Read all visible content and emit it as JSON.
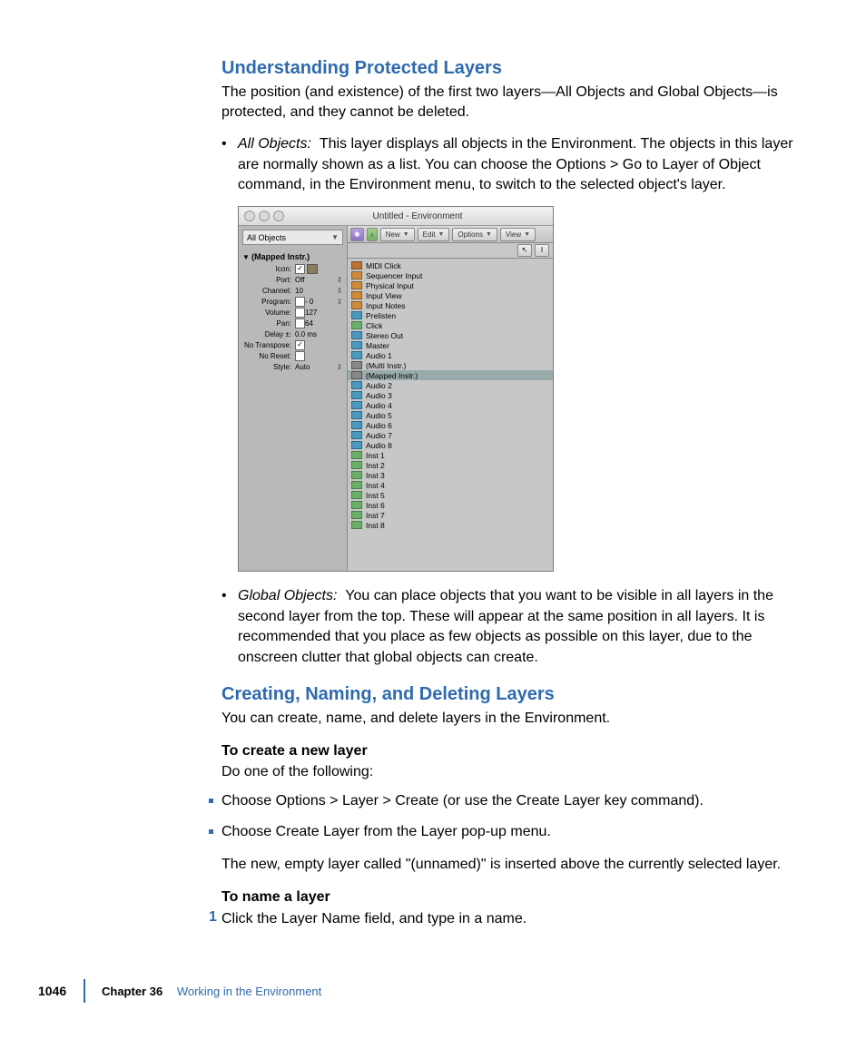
{
  "section1": {
    "title": "Understanding Protected Layers",
    "intro": "The position (and existence) of the first two layers—All Objects and Global Objects—is protected, and they cannot be deleted.",
    "bullet1_label": "All Objects:",
    "bullet1_body": "This layer displays all objects in the Environment. The objects in this layer are normally shown as a list. You can choose the Options > Go to Layer of Object command, in the Environment menu, to switch to the selected object's layer.",
    "bullet2_label": "Global Objects:",
    "bullet2_body": "You can place objects that you want to be visible in all layers in the second layer from the top. These will appear at the same position in all layers. It is recommended that you place as few objects as possible on this layer, due to the onscreen clutter that global objects can create."
  },
  "section2": {
    "title": "Creating, Naming, and Deleting Layers",
    "intro": "You can create, name, and delete layers in the Environment.",
    "sub1": "To create a new layer",
    "sub1_body": "Do one of the following:",
    "opt1": "Choose Options > Layer > Create (or use the Create Layer key command).",
    "opt2": "Choose Create Layer from the Layer pop-up menu.",
    "after_opts": "The new, empty layer called \"(unnamed)\" is inserted above the currently selected layer.",
    "sub2": "To name a layer",
    "step1": "Click the Layer Name field, and type in a name."
  },
  "footer": {
    "page": "1046",
    "chapter_label": "Chapter 36",
    "chapter_title": "Working in the Environment"
  },
  "window": {
    "title": "Untitled - Environment",
    "layer": "All Objects",
    "inspector_title": "(Mapped Instr.)",
    "rows": [
      {
        "label": "Icon:",
        "val": "",
        "check": true,
        "icon": true
      },
      {
        "label": "Port:",
        "val": "Off",
        "updn": true
      },
      {
        "label": "Channel:",
        "val": "10",
        "updn": true
      },
      {
        "label": "Program:",
        "val": "- 0",
        "check": false,
        "updn": true
      },
      {
        "label": "Volume:",
        "val": "127",
        "check": false,
        "updn": false
      },
      {
        "label": "Pan:",
        "val": "64",
        "check": false,
        "updn": false
      },
      {
        "label": "Delay ±:",
        "val": "0.0 ms"
      },
      {
        "label": "No Transpose:",
        "val": "",
        "check": true
      },
      {
        "label": "No Reset:",
        "val": "",
        "check": false
      },
      {
        "label": "Style:",
        "val": "Auto",
        "updn": true
      }
    ],
    "toolbar": {
      "new": "New",
      "edit": "Edit",
      "options": "Options",
      "view": "View"
    },
    "list": [
      {
        "ico": "metro",
        "name": "MIDI Click"
      },
      {
        "ico": "folder",
        "name": "Sequencer Input"
      },
      {
        "ico": "folder",
        "name": "Physical Input"
      },
      {
        "ico": "folder",
        "name": "Input View"
      },
      {
        "ico": "folder",
        "name": "Input Notes"
      },
      {
        "ico": "audio",
        "name": "Prelisten"
      },
      {
        "ico": "inst",
        "name": "Click"
      },
      {
        "ico": "audio",
        "name": "Stereo Out"
      },
      {
        "ico": "audio",
        "name": "Master"
      },
      {
        "ico": "audio",
        "name": "Audio 1"
      },
      {
        "ico": "multi",
        "name": "(Multi Instr.)"
      },
      {
        "ico": "multi",
        "name": "(Mapped Instr.)",
        "selected": true
      },
      {
        "ico": "audio",
        "name": "Audio 2"
      },
      {
        "ico": "audio",
        "name": "Audio 3"
      },
      {
        "ico": "audio",
        "name": "Audio 4"
      },
      {
        "ico": "audio",
        "name": "Audio 5"
      },
      {
        "ico": "audio",
        "name": "Audio 6"
      },
      {
        "ico": "audio",
        "name": "Audio 7"
      },
      {
        "ico": "audio",
        "name": "Audio 8"
      },
      {
        "ico": "inst",
        "name": "Inst 1"
      },
      {
        "ico": "inst",
        "name": "Inst 2"
      },
      {
        "ico": "inst",
        "name": "Inst 3"
      },
      {
        "ico": "inst",
        "name": "Inst 4"
      },
      {
        "ico": "inst",
        "name": "Inst 5"
      },
      {
        "ico": "inst",
        "name": "Inst 6"
      },
      {
        "ico": "inst",
        "name": "Inst 7"
      },
      {
        "ico": "inst",
        "name": "Inst 8"
      }
    ]
  },
  "colors": {
    "link": "#2f6aaf"
  }
}
